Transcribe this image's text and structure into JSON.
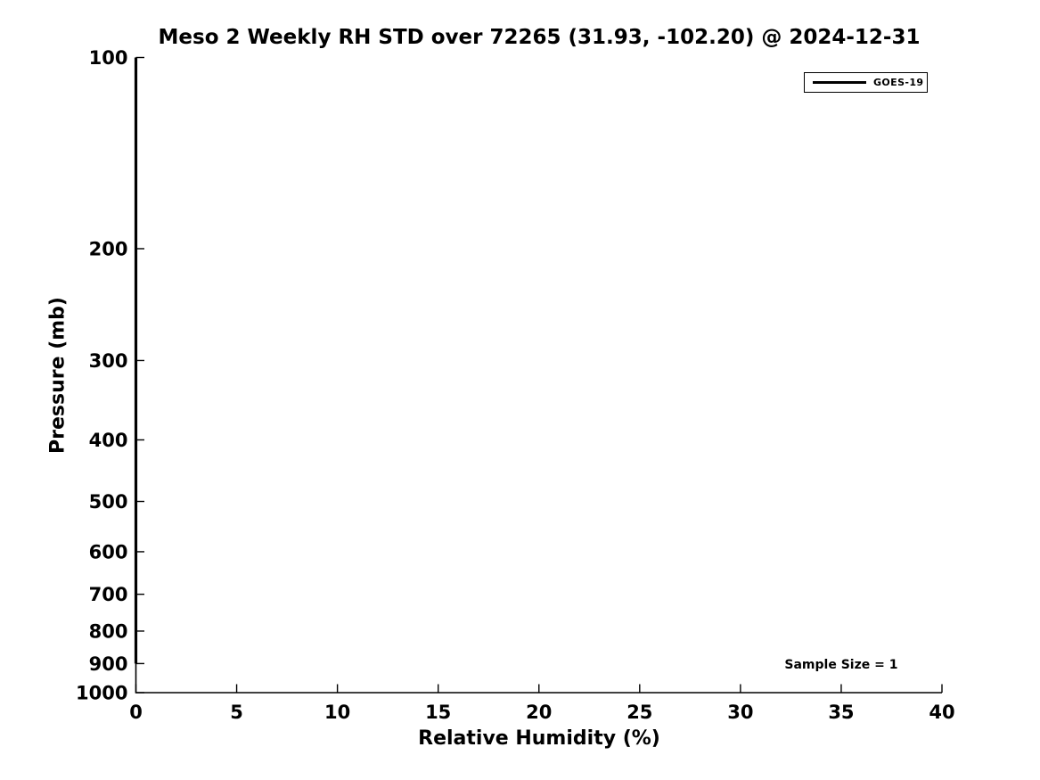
{
  "figure": {
    "background": "#ffffff",
    "foreground": "#000000"
  },
  "chart_data": {
    "type": "line",
    "title": "Meso 2 Weekly RH STD over 72265 (31.93, -102.20) @ 2024-12-31",
    "xlabel": "Relative Humidity (%)",
    "ylabel": "Pressure (mb)",
    "xlim": [
      0,
      40
    ],
    "ylim": [
      1000,
      100
    ],
    "yscale": "log",
    "y_axis_inverted": true,
    "xticks": [
      0,
      5,
      10,
      15,
      20,
      25,
      30,
      35,
      40
    ],
    "yticks": [
      100,
      200,
      300,
      400,
      500,
      600,
      700,
      800,
      900,
      1000
    ],
    "grid": false,
    "axis_color": "#000000",
    "legend": {
      "position": "top-right",
      "entries": [
        {
          "label": "GOES-19",
          "color": "#000000",
          "line_width": 3.5
        }
      ]
    },
    "series": [
      {
        "name": "GOES-19",
        "color": "#000000",
        "line_width": 3.2,
        "x": [
          0,
          0
        ],
        "y": [
          900,
          100
        ]
      }
    ],
    "annotations": [
      {
        "text": "Sample Size = 1",
        "x": 35,
        "y": 905,
        "align": "center"
      }
    ]
  }
}
